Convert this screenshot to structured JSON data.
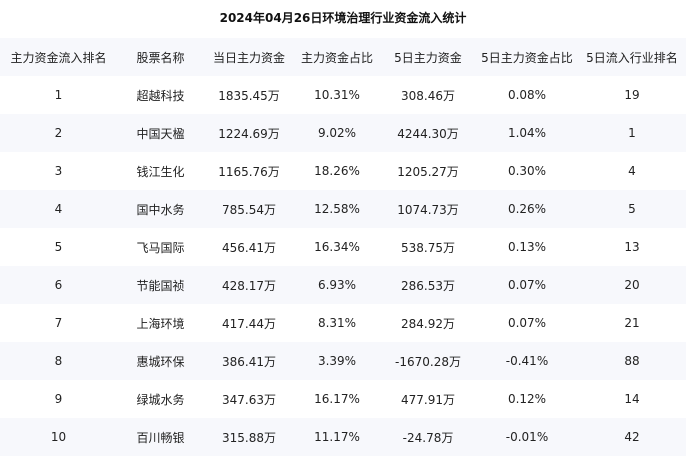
{
  "title": "2024年04月26日环境治理行业资金流入统计",
  "columns": [
    "主力资金流入排名",
    "股票名称",
    "当日主力资金",
    "主力资金占比",
    "5日主力资金",
    "5日主力资金占比",
    "5日流入行业排名"
  ],
  "rows": [
    [
      "1",
      "超越科技",
      "1835.45万",
      "10.31%",
      "308.46万",
      "0.08%",
      "19"
    ],
    [
      "2",
      "中国天楹",
      "1224.69万",
      "9.02%",
      "4244.30万",
      "1.04%",
      "1"
    ],
    [
      "3",
      "钱江生化",
      "1165.76万",
      "18.26%",
      "1205.27万",
      "0.30%",
      "4"
    ],
    [
      "4",
      "国中水务",
      "785.54万",
      "12.58%",
      "1074.73万",
      "0.26%",
      "5"
    ],
    [
      "5",
      "飞马国际",
      "456.41万",
      "16.34%",
      "538.75万",
      "0.13%",
      "13"
    ],
    [
      "6",
      "节能国祯",
      "428.17万",
      "6.93%",
      "286.53万",
      "0.07%",
      "20"
    ],
    [
      "7",
      "上海环境",
      "417.44万",
      "8.31%",
      "284.92万",
      "0.07%",
      "21"
    ],
    [
      "8",
      "惠城环保",
      "386.41万",
      "3.39%",
      "-1670.28万",
      "-0.41%",
      "88"
    ],
    [
      "9",
      "绿城水务",
      "347.63万",
      "16.17%",
      "477.91万",
      "0.12%",
      "14"
    ],
    [
      "10",
      "百川畅银",
      "315.88万",
      "11.17%",
      "-24.78万",
      "-0.01%",
      "42"
    ]
  ],
  "chart_data": {
    "type": "table",
    "title": "2024年04月26日环境治理行业资金流入统计",
    "columns": [
      "主力资金流入排名",
      "股票名称",
      "当日主力资金",
      "主力资金占比",
      "5日主力资金",
      "5日主力资金占比",
      "5日流入行业排名"
    ],
    "rows": [
      [
        1,
        "超越科技",
        "1835.45万",
        "10.31%",
        "308.46万",
        "0.08%",
        19
      ],
      [
        2,
        "中国天楹",
        "1224.69万",
        "9.02%",
        "4244.30万",
        "1.04%",
        1
      ],
      [
        3,
        "钱江生化",
        "1165.76万",
        "18.26%",
        "1205.27万",
        "0.30%",
        4
      ],
      [
        4,
        "国中水务",
        "785.54万",
        "12.58%",
        "1074.73万",
        "0.26%",
        5
      ],
      [
        5,
        "飞马国际",
        "456.41万",
        "16.34%",
        "538.75万",
        "0.13%",
        13
      ],
      [
        6,
        "节能国祯",
        "428.17万",
        "6.93%",
        "286.53万",
        "0.07%",
        20
      ],
      [
        7,
        "上海环境",
        "417.44万",
        "8.31%",
        "284.92万",
        "0.07%",
        21
      ],
      [
        8,
        "惠城环保",
        "386.41万",
        "3.39%",
        "-1670.28万",
        "-0.41%",
        88
      ],
      [
        9,
        "绿城水务",
        "347.63万",
        "16.17%",
        "477.91万",
        "0.12%",
        14
      ],
      [
        10,
        "百川畅银",
        "315.88万",
        "11.17%",
        "-24.78万",
        "-0.01%",
        42
      ]
    ]
  }
}
